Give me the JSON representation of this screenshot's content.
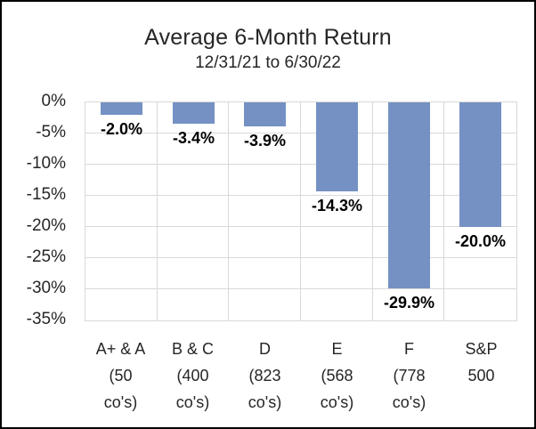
{
  "chart_data": {
    "type": "bar",
    "title": "Average 6-Month Return",
    "subtitle": "12/31/21 to 6/30/22",
    "categories": [
      {
        "lines": [
          "A+ & A",
          "(50",
          "co's)"
        ]
      },
      {
        "lines": [
          "B & C",
          "(400",
          "co's)"
        ]
      },
      {
        "lines": [
          "D",
          "(823",
          "co's)"
        ]
      },
      {
        "lines": [
          "E",
          "(568",
          "co's)"
        ]
      },
      {
        "lines": [
          "F",
          "(778",
          "co's)"
        ]
      },
      {
        "lines": [
          "S&P",
          "500"
        ]
      }
    ],
    "values": [
      -2.0,
      -3.4,
      -3.9,
      -14.3,
      -29.9,
      -20.0
    ],
    "data_labels": [
      "-2.0%",
      "-3.4%",
      "-3.9%",
      "-14.3%",
      "-29.9%",
      "-20.0%"
    ],
    "y_ticks": [
      "0%",
      "-5%",
      "-10%",
      "-15%",
      "-20%",
      "-25%",
      "-30%",
      "-35%"
    ],
    "ylim": [
      -35,
      0
    ],
    "grid": true,
    "legend": "none",
    "xlabel": "",
    "ylabel": "",
    "colors": {
      "bar": "#7591C4",
      "gridline": "#D9D9D9",
      "plot_border": "#D9D9D9",
      "text": "#262626",
      "data_label": "#000000",
      "frame": "#000000",
      "background": "#FFFFFF"
    }
  }
}
